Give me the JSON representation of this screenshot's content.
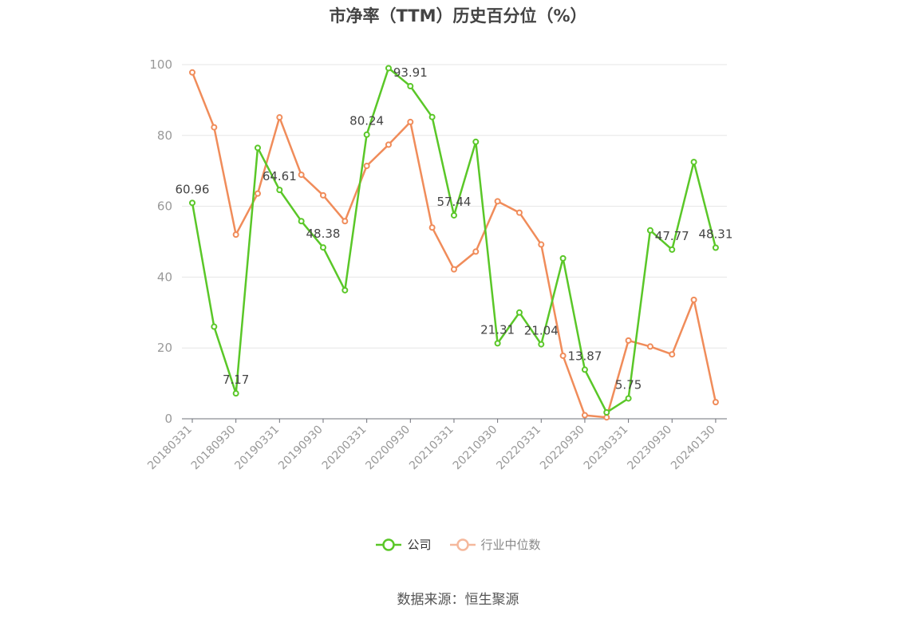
{
  "chart_data": {
    "type": "line",
    "title": "市净率（TTM）历史百分位（%）",
    "xlabel": "",
    "ylabel": "",
    "ylim": [
      0,
      100
    ],
    "yticks": [
      0,
      20,
      40,
      60,
      80,
      100
    ],
    "grid": true,
    "legend_position": "bottom",
    "x": [
      "20180331",
      "20180630",
      "20180930",
      "20181231",
      "20190331",
      "20190630",
      "20190930",
      "20191231",
      "20200331",
      "20200630",
      "20200930",
      "20201231",
      "20210331",
      "20210630",
      "20210930",
      "20211231",
      "20220331",
      "20220630",
      "20220930",
      "20221231",
      "20230331",
      "20230630",
      "20230930",
      "20231231",
      "20240130"
    ],
    "x_tick_labels": [
      "20180331",
      "20180930",
      "20190331",
      "20190930",
      "20200331",
      "20200930",
      "20210331",
      "20210930",
      "20220331",
      "20220930",
      "20230331",
      "20230930",
      "20240130"
    ],
    "series": [
      {
        "name": "公司",
        "color": "#5ac728",
        "values": [
          60.96,
          26.0,
          7.17,
          76.5,
          64.61,
          55.8,
          48.38,
          36.3,
          80.24,
          99.0,
          93.91,
          85.2,
          57.44,
          78.2,
          21.31,
          30.0,
          21.04,
          45.3,
          13.87,
          1.8,
          5.75,
          53.2,
          47.77,
          72.5,
          48.31
        ],
        "data_labels": {
          "0": "60.96",
          "2": "7.17",
          "4": "64.61",
          "6": "48.38",
          "8": "80.24",
          "10": "93.91",
          "12": "57.44",
          "14": "21.31",
          "16": "21.04",
          "18": "13.87",
          "20": "5.75",
          "22": "47.77",
          "24": "48.31"
        }
      },
      {
        "name": "行业中位数",
        "color": "#f08c5a",
        "values": [
          97.8,
          82.3,
          52.0,
          63.6,
          85.1,
          68.9,
          63.1,
          55.8,
          71.4,
          77.4,
          83.8,
          54.0,
          42.2,
          47.2,
          61.4,
          58.2,
          49.2,
          17.8,
          1.0,
          0.4,
          22.1,
          20.4,
          18.2,
          33.6,
          4.7
        ]
      }
    ]
  },
  "source_note": "数据来源：恒生聚源"
}
